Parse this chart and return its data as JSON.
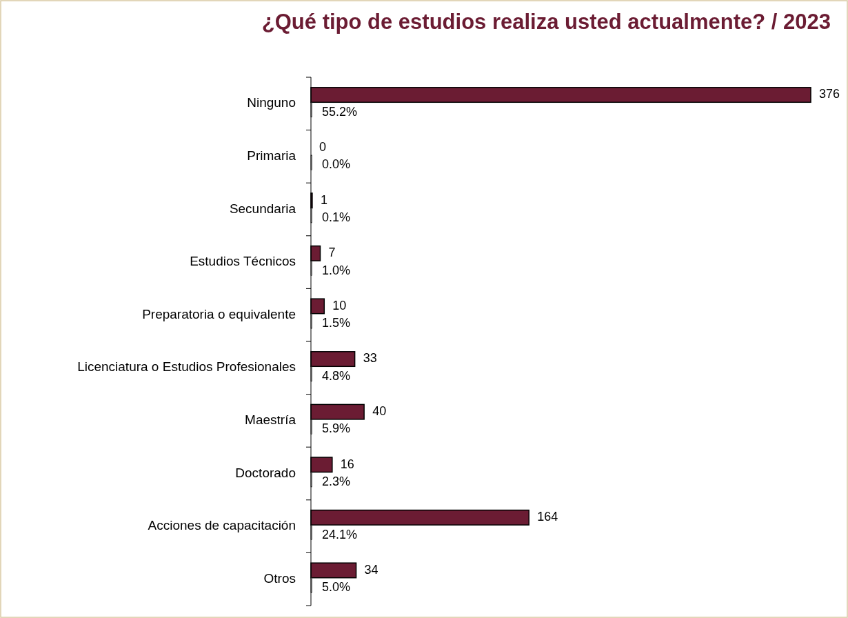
{
  "chart_data": {
    "type": "bar",
    "orientation": "horizontal",
    "title": "¿Qué tipo de estudios realiza usted actualmente? / 2023",
    "categories": [
      "Ninguno",
      "Primaria",
      "Secundaria",
      "Estudios Técnicos",
      "Preparatoria o equivalente",
      "Licenciatura o Estudios Profesionales",
      "Maestría",
      "Doctorado",
      "Acciones de capacitación",
      "Otros"
    ],
    "series": [
      {
        "color": "#6b1c33",
        "values": [
          376,
          0,
          1,
          7,
          10,
          33,
          40,
          16,
          164,
          34
        ],
        "value_labels": [
          "376",
          "0",
          "1",
          "7",
          "10",
          "33",
          "40",
          "16",
          "164",
          "34"
        ]
      },
      {
        "color": "#ffffff",
        "values": [
          0.552,
          0,
          0.001,
          0.01,
          0.015,
          0.048,
          0.059,
          0.023,
          0.241,
          0.05
        ],
        "value_labels": [
          "55.2%",
          "0.0%",
          "0.1%",
          "1.0%",
          "1.5%",
          "4.8%",
          "5.9%",
          "2.3%",
          "24.1%",
          "5.0%"
        ]
      }
    ],
    "stacked": false
  }
}
